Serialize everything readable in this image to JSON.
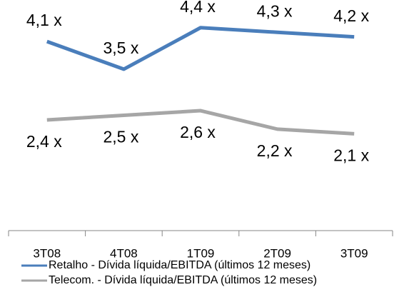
{
  "chart_data": {
    "type": "line",
    "categories": [
      "3T08",
      "4T08",
      "1T09",
      "2T09",
      "3T09"
    ],
    "series": [
      {
        "name": "Retalho - Dívida líquida/EBITDA (últimos 12 meses)",
        "color": "#4a7ebb",
        "values": [
          4.1,
          3.5,
          4.4,
          4.3,
          4.2
        ],
        "value_labels": [
          "4,1 x",
          "3,5 x",
          "4,4 x",
          "4,3 x",
          "4,2 x"
        ]
      },
      {
        "name": "Telecom. - Dívida líquida/EBITDA (últimos 12 meses)",
        "color": "#a6a6a6",
        "values": [
          2.4,
          2.5,
          2.6,
          2.2,
          2.1
        ],
        "value_labels": [
          "2,4 x",
          "2,5 x",
          "2,6 x",
          "2,2 x",
          "2,1 x"
        ]
      }
    ],
    "ylim": [
      0,
      5
    ],
    "legend": "bottom"
  }
}
